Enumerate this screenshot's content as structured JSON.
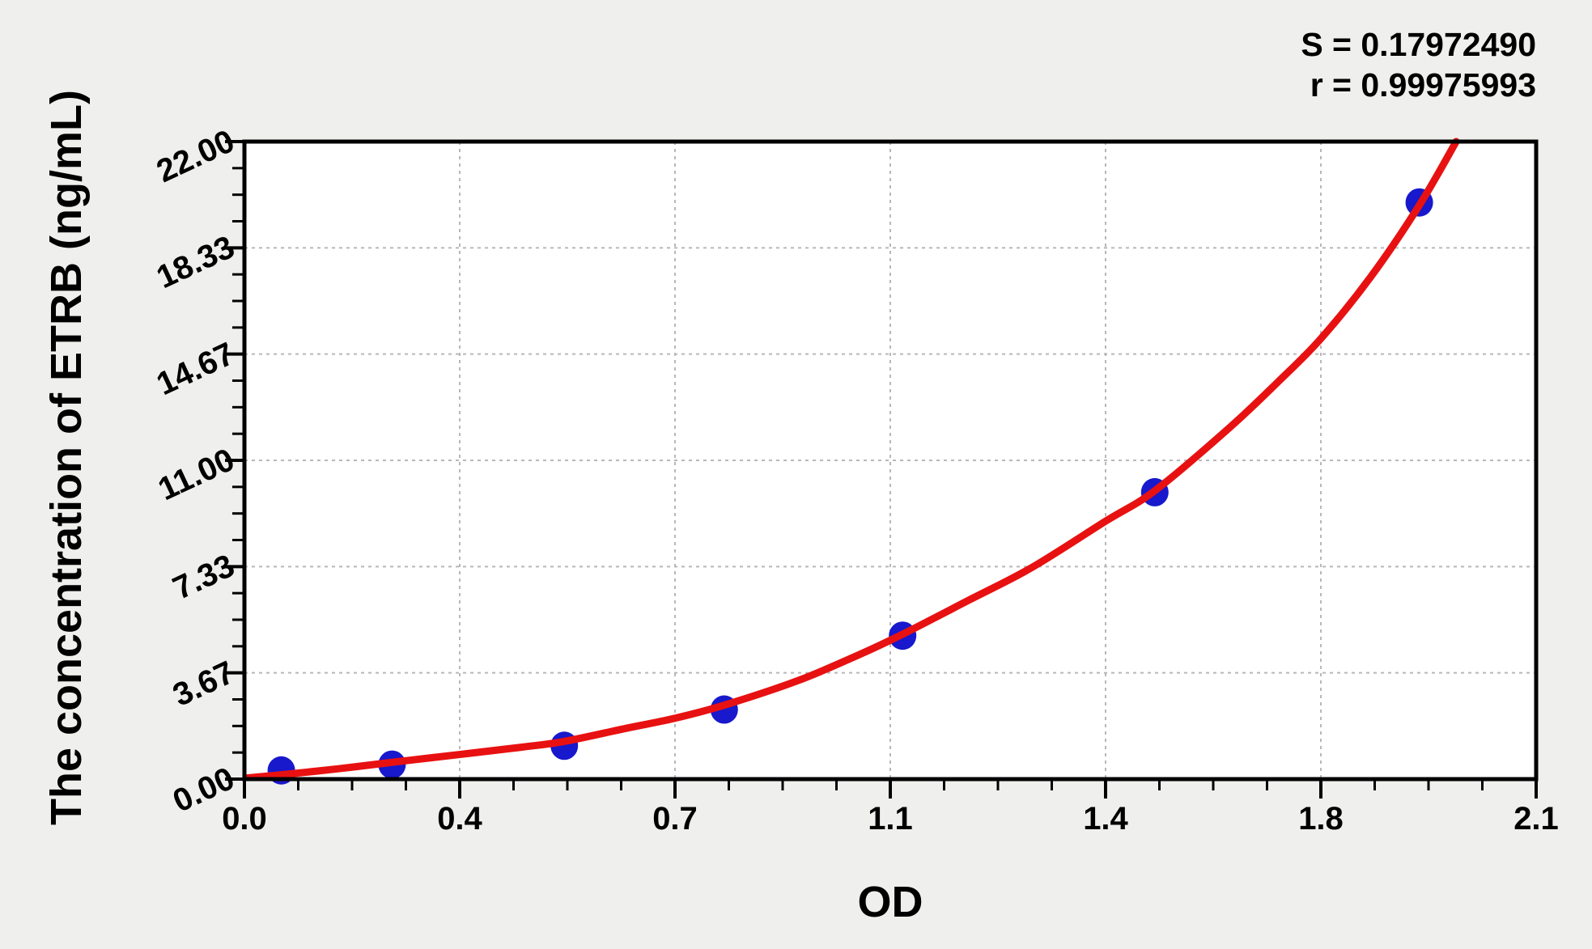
{
  "stats": {
    "s_line": "S = 0.17972490",
    "r_line": "r = 0.99975993"
  },
  "chart_data": {
    "type": "scatter",
    "title": "",
    "xlabel": "OD",
    "ylabel": "The concentration of ETRB (ng/mL)",
    "xlim": [
      0,
      2.1
    ],
    "ylim": [
      0,
      22
    ],
    "x_major_ticks": [
      0,
      0.35,
      0.7,
      1.05,
      1.4,
      1.75,
      2.1
    ],
    "x_tick_labels": [
      "0.0",
      "0.4",
      "0.7",
      "1.1",
      "1.4",
      "1.8",
      "2.1"
    ],
    "y_major_ticks": [
      0,
      3.6667,
      7.3333,
      11,
      14.6667,
      18.3333,
      22
    ],
    "y_tick_labels": [
      "0.00",
      "3.67",
      "7.33",
      "11.00",
      "14.67",
      "18.33",
      "22.00"
    ],
    "minor_divisions_per_major": 4,
    "grid": true,
    "legend_position": "none",
    "annotations": {
      "S": "0.17972490",
      "r": "0.99975993"
    },
    "series": [
      {
        "name": "standard-points",
        "type": "scatter",
        "color": "#1818cc",
        "points": [
          [
            0.06,
            0.3
          ],
          [
            0.24,
            0.5
          ],
          [
            0.52,
            1.15
          ],
          [
            0.78,
            2.4
          ],
          [
            1.07,
            4.95
          ],
          [
            1.48,
            9.9
          ],
          [
            1.91,
            19.9
          ]
        ]
      },
      {
        "name": "fitted-curve",
        "type": "line",
        "color": "#e81111",
        "points": [
          [
            0,
            0.03
          ],
          [
            0.06,
            0.15
          ],
          [
            0.15,
            0.35
          ],
          [
            0.24,
            0.58
          ],
          [
            0.35,
            0.85
          ],
          [
            0.45,
            1.1
          ],
          [
            0.52,
            1.3
          ],
          [
            0.62,
            1.75
          ],
          [
            0.7,
            2.1
          ],
          [
            0.78,
            2.55
          ],
          [
            0.9,
            3.4
          ],
          [
            1.0,
            4.3
          ],
          [
            1.07,
            5.0
          ],
          [
            1.18,
            6.2
          ],
          [
            1.28,
            7.3
          ],
          [
            1.4,
            8.9
          ],
          [
            1.48,
            9.95
          ],
          [
            1.6,
            12.1
          ],
          [
            1.68,
            13.7
          ],
          [
            1.75,
            15.2
          ],
          [
            1.83,
            17.3
          ],
          [
            1.91,
            19.8
          ],
          [
            1.97,
            22.0
          ]
        ]
      }
    ]
  },
  "colors": {
    "page_bg": "#efefed",
    "plot_bg": "#ffffff",
    "axis": "#000000",
    "grid": "#b8b8b8",
    "point": "#1818cc",
    "curve": "#e81111",
    "text": "#000000"
  }
}
